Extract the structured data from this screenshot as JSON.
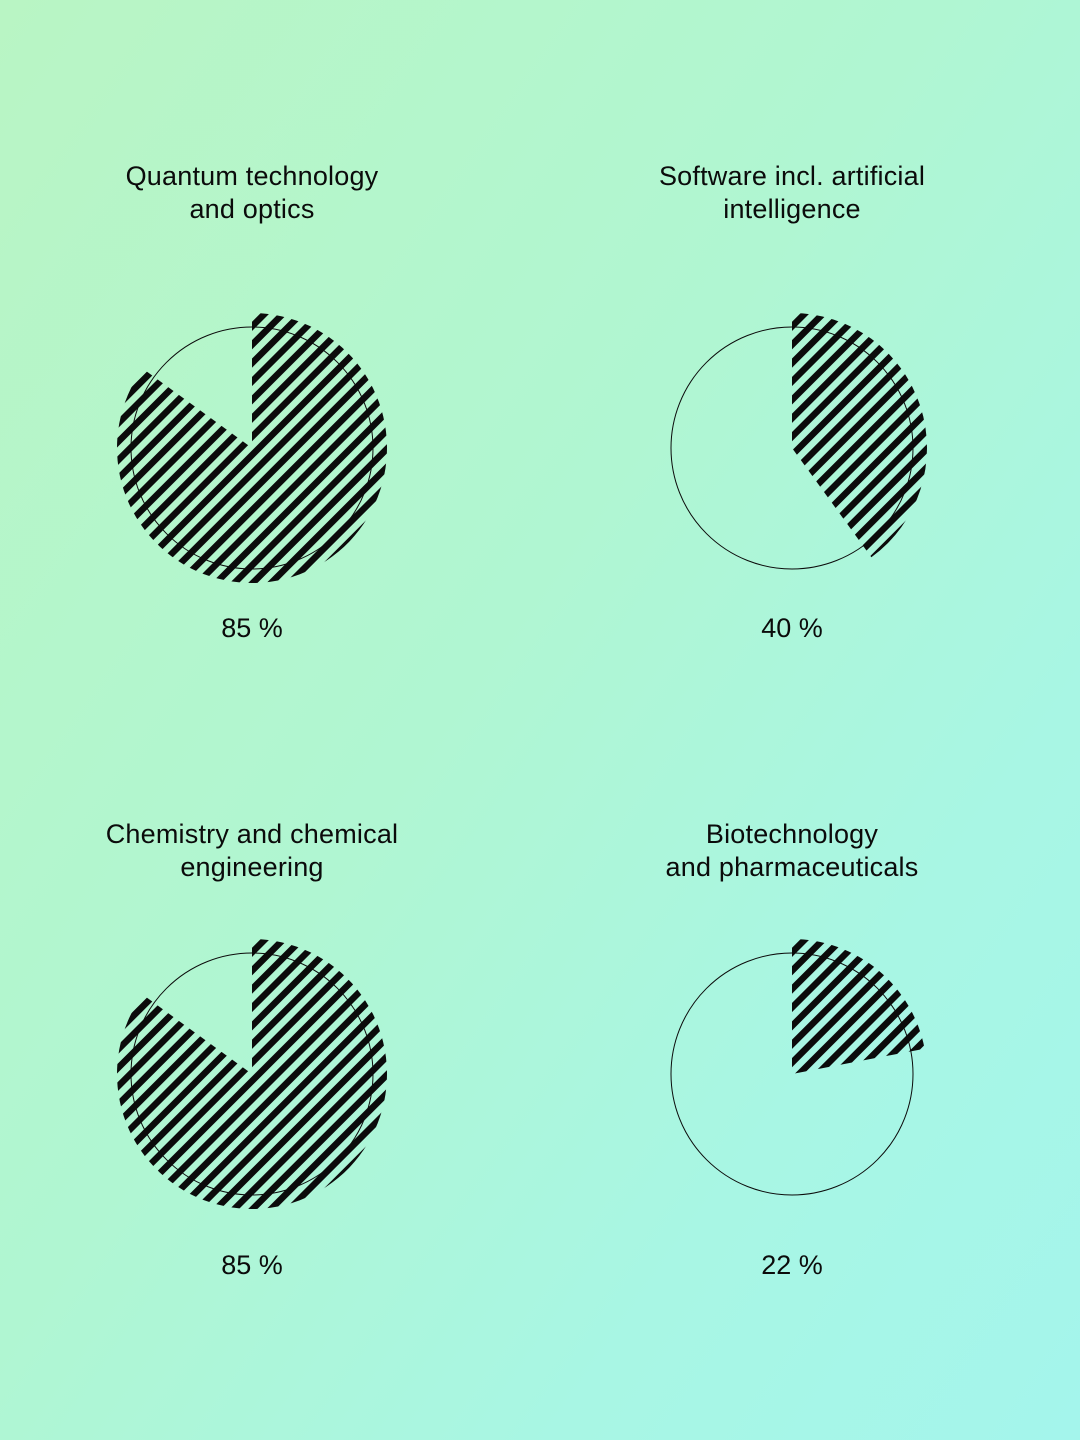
{
  "chart_data": [
    {
      "type": "pie",
      "title": "Quantum technology\nand optics",
      "value": 85,
      "value_label": "85 %",
      "fill": "diagonal-hatch"
    },
    {
      "type": "pie",
      "title": "Software incl. artificial\nintelligence",
      "value": 40,
      "value_label": "40 %",
      "fill": "diagonal-hatch"
    },
    {
      "type": "pie",
      "title": "Chemistry and chemical\nengineering",
      "value": 85,
      "value_label": "85 %",
      "fill": "diagonal-hatch"
    },
    {
      "type": "pie",
      "title": "Biotechnology\nand pharmaceuticals",
      "value": 22,
      "value_label": "22 %",
      "fill": "diagonal-hatch"
    }
  ],
  "colors": {
    "ink": "#0b0b0b",
    "background_start": "#b9f5c4",
    "background_end": "#a4f5ec"
  }
}
